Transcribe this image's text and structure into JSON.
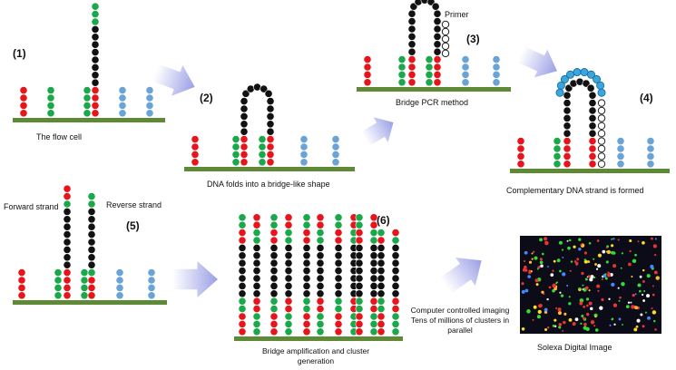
{
  "steps": {
    "s1": "(1)",
    "s2": "(2)",
    "s3": "(3)",
    "s4": "(4)",
    "s5": "(5)",
    "s6": "(6)"
  },
  "labels": {
    "flow_cell": "The flow cell",
    "folds": "DNA folds into a bridge-like shape",
    "bridge_pcr": "Bridge PCR method",
    "primer": "Primer",
    "complementary": "Complementary DNA strand is formed",
    "forward": "Forward strand",
    "reverse": "Reverse strand",
    "amplification_line1": "Bridge amplification and cluster",
    "amplification_line2": "generation",
    "imaging_line1": "Computer controlled imaging",
    "imaging_line2": "Tens of millions of clusters in",
    "imaging_line3": "parallel",
    "solexa": "Solexa Digital Image"
  },
  "colors": {
    "red": "#e8141b",
    "green": "#1aa84b",
    "blue": "#6aa3d5",
    "black": "#111111",
    "cyan": "#36a8df",
    "substrate": "#5e8a35",
    "arrow": "#9b9fe6",
    "image_bg": "#0c0c18"
  }
}
